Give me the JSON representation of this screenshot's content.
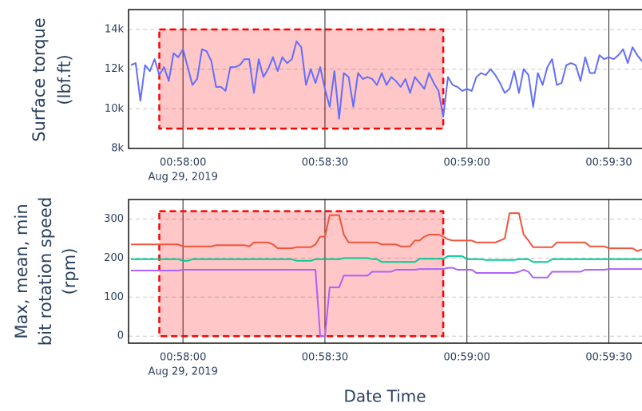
{
  "chart_data": [
    {
      "type": "line",
      "ylabel": [
        "Surface torque",
        "(lbf.ft)"
      ],
      "x_date_label": "Aug 29, 2019",
      "xlim": [
        "00:57:48.5",
        "00:59:37"
      ],
      "xticks": [
        "00:58:00",
        "00:58:30",
        "00:59:00",
        "00:59:30"
      ],
      "ylim": [
        8000,
        15000
      ],
      "yticks": [
        {
          "value": 8000,
          "label": "8k"
        },
        {
          "value": 10000,
          "label": "10k"
        },
        {
          "value": 12000,
          "label": "12k"
        },
        {
          "value": 14000,
          "label": "14k"
        }
      ],
      "grid": true,
      "highlight": {
        "x0": "00:57:55",
        "x1": "00:58:55",
        "y0": 9000,
        "y1": 14000,
        "color": "#ff0000"
      },
      "x": [
        "00:57:49",
        "00:57:50",
        "00:57:51",
        "00:57:52",
        "00:57:53",
        "00:57:54",
        "00:57:55",
        "00:57:56",
        "00:57:57",
        "00:57:58",
        "00:57:59",
        "00:58:00",
        "00:58:01",
        "00:58:02",
        "00:58:03",
        "00:58:04",
        "00:58:05",
        "00:58:06",
        "00:58:07",
        "00:58:08",
        "00:58:09",
        "00:58:10",
        "00:58:11",
        "00:58:12",
        "00:58:13",
        "00:58:14",
        "00:58:15",
        "00:58:16",
        "00:58:17",
        "00:58:18",
        "00:58:19",
        "00:58:20",
        "00:58:21",
        "00:58:22",
        "00:58:23",
        "00:58:24",
        "00:58:25",
        "00:58:26",
        "00:58:27",
        "00:58:28",
        "00:58:29",
        "00:58:30",
        "00:58:31",
        "00:58:32",
        "00:58:33",
        "00:58:34",
        "00:58:35",
        "00:58:36",
        "00:58:37",
        "00:58:38",
        "00:58:39",
        "00:58:40",
        "00:58:41",
        "00:58:42",
        "00:58:43",
        "00:58:44",
        "00:58:45",
        "00:58:46",
        "00:58:47",
        "00:58:48",
        "00:58:49",
        "00:58:50",
        "00:58:51",
        "00:58:52",
        "00:58:53",
        "00:58:54",
        "00:58:55",
        "00:58:56",
        "00:58:57",
        "00:58:58",
        "00:58:59",
        "00:59:00",
        "00:59:01",
        "00:59:02",
        "00:59:03",
        "00:59:04",
        "00:59:05",
        "00:59:06",
        "00:59:07",
        "00:59:08",
        "00:59:09",
        "00:59:10",
        "00:59:11",
        "00:59:12",
        "00:59:13",
        "00:59:14",
        "00:59:15",
        "00:59:16",
        "00:59:17",
        "00:59:18",
        "00:59:19",
        "00:59:20",
        "00:59:21",
        "00:59:22",
        "00:59:23",
        "00:59:24",
        "00:59:25",
        "00:59:26",
        "00:59:27",
        "00:59:28",
        "00:59:29",
        "00:59:30",
        "00:59:31",
        "00:59:32",
        "00:59:33",
        "00:59:34",
        "00:59:35",
        "00:59:36",
        "00:59:37"
      ],
      "series": [
        {
          "color": "#636efa",
          "values": [
            12200,
            12300,
            10400,
            12200,
            11900,
            12500,
            11700,
            12100,
            11400,
            12800,
            12600,
            13000,
            12100,
            11200,
            11500,
            13000,
            12900,
            12400,
            11100,
            11100,
            10900,
            12100,
            12100,
            12200,
            12500,
            12500,
            10800,
            12500,
            11600,
            12000,
            12600,
            11900,
            12600,
            12300,
            12500,
            13400,
            13100,
            11200,
            12000,
            11300,
            12100,
            11000,
            10100,
            11900,
            9500,
            11800,
            11600,
            10100,
            11800,
            11500,
            11600,
            11500,
            11200,
            11800,
            11200,
            11600,
            11400,
            11100,
            11500,
            10800,
            11600,
            11300,
            11000,
            11800,
            11300,
            10900,
            9600,
            11600,
            11200,
            11100,
            10900,
            11000,
            10900,
            11600,
            11800,
            11700,
            12000,
            11700,
            11300,
            10800,
            11000,
            11900,
            10800,
            12000,
            11700,
            10100,
            11800,
            11200,
            12100,
            12500,
            11200,
            11300,
            12200,
            12300,
            12200,
            11400,
            12600,
            11800,
            11800,
            12700,
            12500,
            12600,
            12500,
            12700,
            13000,
            12300,
            13100,
            12700,
            12400
          ]
        }
      ]
    },
    {
      "type": "line",
      "ylabel": [
        "Max, mean, min",
        "bit rotation speed",
        "(rpm)"
      ],
      "xlabel": "Date Time",
      "x_date_label": "Aug 29, 2019",
      "xlim": [
        "00:57:48.5",
        "00:59:37"
      ],
      "xticks": [
        "00:58:00",
        "00:58:30",
        "00:59:00",
        "00:59:30"
      ],
      "ylim": [
        -18,
        350
      ],
      "yticks": [
        0,
        100,
        200,
        300
      ],
      "grid": true,
      "highlight": {
        "x0": "00:57:55",
        "x1": "00:58:55",
        "y0": 0,
        "y1": 320,
        "color": "#ff0000"
      },
      "x": [
        "00:57:49",
        "00:57:50",
        "00:57:51",
        "00:57:52",
        "00:57:53",
        "00:57:54",
        "00:57:55",
        "00:57:56",
        "00:57:57",
        "00:57:58",
        "00:57:59",
        "00:58:00",
        "00:58:01",
        "00:58:02",
        "00:58:03",
        "00:58:04",
        "00:58:05",
        "00:58:06",
        "00:58:07",
        "00:58:08",
        "00:58:09",
        "00:58:10",
        "00:58:11",
        "00:58:12",
        "00:58:13",
        "00:58:14",
        "00:58:15",
        "00:58:16",
        "00:58:17",
        "00:58:18",
        "00:58:19",
        "00:58:20",
        "00:58:21",
        "00:58:22",
        "00:58:23",
        "00:58:24",
        "00:58:25",
        "00:58:26",
        "00:58:27",
        "00:58:28",
        "00:58:29",
        "00:58:30",
        "00:58:31",
        "00:58:32",
        "00:58:33",
        "00:58:34",
        "00:58:35",
        "00:58:36",
        "00:58:37",
        "00:58:38",
        "00:58:39",
        "00:58:40",
        "00:58:41",
        "00:58:42",
        "00:58:43",
        "00:58:44",
        "00:58:45",
        "00:58:46",
        "00:58:47",
        "00:58:48",
        "00:58:49",
        "00:58:50",
        "00:58:51",
        "00:58:52",
        "00:58:53",
        "00:58:54",
        "00:58:55",
        "00:58:56",
        "00:58:57",
        "00:58:58",
        "00:58:59",
        "00:59:00",
        "00:59:01",
        "00:59:02",
        "00:59:03",
        "00:59:04",
        "00:59:05",
        "00:59:06",
        "00:59:07",
        "00:59:08",
        "00:59:09",
        "00:59:10",
        "00:59:11",
        "00:59:12",
        "00:59:13",
        "00:59:14",
        "00:59:15",
        "00:59:16",
        "00:59:17",
        "00:59:18",
        "00:59:19",
        "00:59:20",
        "00:59:21",
        "00:59:22",
        "00:59:23",
        "00:59:24",
        "00:59:25",
        "00:59:26",
        "00:59:27",
        "00:59:28",
        "00:59:29",
        "00:59:30",
        "00:59:31",
        "00:59:32",
        "00:59:33",
        "00:59:34",
        "00:59:35",
        "00:59:36",
        "00:59:37"
      ],
      "series": [
        {
          "color": "#ef553b",
          "values": [
            235,
            235,
            235,
            235,
            235,
            235,
            235,
            235,
            235,
            235,
            235,
            230,
            230,
            230,
            230,
            230,
            230,
            230,
            233,
            233,
            233,
            233,
            233,
            233,
            233,
            230,
            240,
            240,
            240,
            240,
            235,
            225,
            225,
            225,
            225,
            228,
            228,
            228,
            228,
            235,
            255,
            255,
            310,
            310,
            310,
            260,
            240,
            240,
            240,
            240,
            240,
            240,
            240,
            235,
            235,
            235,
            235,
            230,
            230,
            230,
            245,
            245,
            255,
            260,
            260,
            260,
            255,
            248,
            245,
            245,
            245,
            245,
            245,
            240,
            240,
            240,
            240,
            240,
            245,
            250,
            315,
            315,
            315,
            260,
            245,
            228,
            228,
            228,
            228,
            228,
            240,
            240,
            240,
            240,
            240,
            240,
            240,
            230,
            230,
            230,
            230,
            225,
            225,
            225,
            225,
            225,
            225,
            218,
            222
          ]
        },
        {
          "color": "#00cc96",
          "values": [
            197,
            197,
            197,
            197,
            197,
            197,
            197,
            197,
            197,
            197,
            197,
            193,
            193,
            197,
            197,
            197,
            197,
            197,
            197,
            197,
            197,
            197,
            197,
            197,
            197,
            197,
            197,
            197,
            197,
            197,
            197,
            197,
            197,
            197,
            197,
            193,
            193,
            193,
            193,
            197,
            197,
            197,
            197,
            197,
            197,
            200,
            200,
            200,
            200,
            200,
            200,
            197,
            197,
            190,
            190,
            190,
            190,
            190,
            190,
            190,
            190,
            198,
            198,
            198,
            198,
            198,
            198,
            205,
            205,
            205,
            205,
            197,
            197,
            197,
            197,
            195,
            195,
            195,
            195,
            195,
            195,
            195,
            197,
            197,
            197,
            190,
            190,
            190,
            190,
            197,
            197,
            197,
            197,
            197,
            197,
            197,
            197,
            197,
            197,
            197,
            197,
            197,
            197,
            197,
            197,
            197,
            197,
            197,
            197
          ]
        },
        {
          "color": "#ab63fa",
          "values": [
            168,
            168,
            168,
            168,
            168,
            168,
            168,
            168,
            168,
            168,
            168,
            170,
            170,
            170,
            170,
            170,
            170,
            170,
            170,
            170,
            170,
            170,
            170,
            170,
            170,
            170,
            170,
            170,
            170,
            170,
            170,
            170,
            170,
            170,
            170,
            170,
            170,
            170,
            170,
            170,
            0,
            0,
            125,
            125,
            125,
            155,
            155,
            155,
            155,
            155,
            155,
            165,
            165,
            165,
            165,
            165,
            170,
            170,
            170,
            170,
            170,
            172,
            172,
            172,
            172,
            172,
            172,
            175,
            175,
            170,
            170,
            170,
            170,
            162,
            162,
            162,
            162,
            162,
            162,
            162,
            162,
            162,
            165,
            170,
            165,
            150,
            150,
            150,
            150,
            165,
            165,
            165,
            165,
            165,
            165,
            165,
            170,
            170,
            170,
            170,
            170,
            172,
            172,
            172,
            172,
            172,
            172,
            172,
            172
          ]
        }
      ]
    }
  ]
}
